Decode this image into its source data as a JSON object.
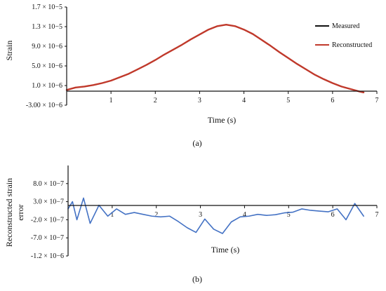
{
  "chart_data": [
    {
      "type": "line",
      "panel_label": "(a)",
      "xlabel": "Time (s)",
      "ylabel": "Strain",
      "xlim": [
        0,
        7
      ],
      "ylim": [
        -3e-06,
        1.7e-05
      ],
      "xticks": [
        {
          "value": 1,
          "label": "1"
        },
        {
          "value": 2,
          "label": "2"
        },
        {
          "value": 3,
          "label": "3"
        },
        {
          "value": 4,
          "label": "4"
        },
        {
          "value": 5,
          "label": "5"
        },
        {
          "value": 6,
          "label": "6"
        },
        {
          "value": 7,
          "label": "7"
        }
      ],
      "yticks": [
        {
          "value": -3e-06,
          "label": "-3.00 × 10−6"
        },
        {
          "value": 1e-06,
          "label": "1.0 × 10−6"
        },
        {
          "value": 5e-06,
          "label": "5.0 × 10−6"
        },
        {
          "value": 9e-06,
          "label": "9.0 × 10−6"
        },
        {
          "value": 1.3e-05,
          "label": "1.3 × 10−5"
        },
        {
          "value": 1.7e-05,
          "label": "1.7 × 10−5"
        }
      ],
      "legend": {
        "placement": "right",
        "entries": [
          {
            "name": "Measured",
            "color": "#111111"
          },
          {
            "name": "Reconstructed",
            "color": "#c0392b"
          }
        ]
      },
      "series": [
        {
          "name": "Measured",
          "color": "#111111",
          "x": [
            0,
            0.2,
            0.4,
            0.6,
            0.8,
            1.0,
            1.2,
            1.4,
            1.6,
            1.8,
            2.0,
            2.2,
            2.4,
            2.6,
            2.8,
            3.0,
            3.2,
            3.4,
            3.6,
            3.8,
            4.0,
            4.2,
            4.4,
            4.6,
            4.8,
            5.0,
            5.2,
            5.4,
            5.6,
            5.8,
            6.0,
            6.2,
            6.4,
            6.6,
            6.7
          ],
          "y": [
            1e-07,
            6e-07,
            8e-07,
            1.1e-06,
            1.5e-06,
            2e-06,
            2.7e-06,
            3.4e-06,
            4.3e-06,
            5.2e-06,
            6.2e-06,
            7.3e-06,
            8.3e-06,
            9.3e-06,
            1.04e-05,
            1.14e-05,
            1.24e-05,
            1.31e-05,
            1.34e-05,
            1.31e-05,
            1.24e-05,
            1.15e-05,
            1.03e-05,
            9.1e-06,
            7.8e-06,
            6.6e-06,
            5.4e-06,
            4.3e-06,
            3.2e-06,
            2.3e-06,
            1.5e-06,
            8e-07,
            3e-07,
            -2e-07,
            -4e-07
          ]
        },
        {
          "name": "Reconstructed",
          "color": "#c0392b",
          "x": [
            0,
            0.2,
            0.4,
            0.6,
            0.8,
            1.0,
            1.2,
            1.4,
            1.6,
            1.8,
            2.0,
            2.2,
            2.4,
            2.6,
            2.8,
            3.0,
            3.2,
            3.4,
            3.6,
            3.8,
            4.0,
            4.2,
            4.4,
            4.6,
            4.8,
            5.0,
            5.2,
            5.4,
            5.6,
            5.8,
            6.0,
            6.2,
            6.4,
            6.6,
            6.7
          ],
          "y": [
            1e-07,
            6e-07,
            8e-07,
            1.1e-06,
            1.5e-06,
            2e-06,
            2.7e-06,
            3.4e-06,
            4.3e-06,
            5.2e-06,
            6.2e-06,
            7.3e-06,
            8.3e-06,
            9.3e-06,
            1.04e-05,
            1.14e-05,
            1.24e-05,
            1.31e-05,
            1.34e-05,
            1.31e-05,
            1.24e-05,
            1.15e-05,
            1.03e-05,
            9.1e-06,
            7.8e-06,
            6.6e-06,
            5.4e-06,
            4.3e-06,
            3.2e-06,
            2.3e-06,
            1.5e-06,
            8e-07,
            3e-07,
            -2e-07,
            -4e-07
          ]
        }
      ]
    },
    {
      "type": "line",
      "panel_label": "(b)",
      "xlabel": "Time (s)",
      "ylabel_lines": [
        "Reconstructed strain",
        "error"
      ],
      "xlim": [
        0,
        7
      ],
      "ylim": [
        -1.2e-06,
        1.3e-06
      ],
      "xticks": [
        {
          "value": 1,
          "label": "1"
        },
        {
          "value": 2,
          "label": "2"
        },
        {
          "value": 3,
          "label": "3"
        },
        {
          "value": 4,
          "label": "4"
        },
        {
          "value": 5,
          "label": "5"
        },
        {
          "value": 6,
          "label": "6"
        },
        {
          "value": 7,
          "label": "7"
        }
      ],
      "yticks": [
        {
          "value": -1.2e-06,
          "label": "-1.2 × 10−6"
        },
        {
          "value": -7e-07,
          "label": "-7.0 × 10−7"
        },
        {
          "value": -2e-07,
          "label": "-2.0 × 10−7"
        },
        {
          "value": 3e-07,
          "label": "3.0 × 10−7"
        },
        {
          "value": 8e-07,
          "label": "8.0 × 10−7"
        }
      ],
      "series": [
        {
          "name": "",
          "color": "#4472c4",
          "x": [
            0,
            0.1,
            0.2,
            0.35,
            0.5,
            0.7,
            0.9,
            1.1,
            1.3,
            1.5,
            1.7,
            1.9,
            2.1,
            2.3,
            2.5,
            2.7,
            2.9,
            3.1,
            3.3,
            3.5,
            3.7,
            3.9,
            4.1,
            4.3,
            4.5,
            4.7,
            4.9,
            5.1,
            5.3,
            5.5,
            5.7,
            5.9,
            6.1,
            6.3,
            6.5,
            6.7
          ],
          "y": [
            1e-07,
            3e-07,
            -2e-07,
            4e-07,
            -3e-07,
            2e-07,
            -1e-07,
            1e-07,
            -5e-08,
            0,
            -5e-08,
            -1e-07,
            -1.2e-07,
            -1e-07,
            -2.5e-07,
            -4.2e-07,
            -5.5e-07,
            -1.8e-07,
            -4.6e-07,
            -5.8e-07,
            -2.6e-07,
            -1.2e-07,
            -1e-07,
            -5e-08,
            -8e-08,
            -6e-08,
            -1e-08,
            1e-08,
            1e-07,
            6e-08,
            4e-08,
            2e-08,
            1e-07,
            -2e-07,
            2.5e-07,
            -1e-07
          ]
        }
      ]
    }
  ]
}
